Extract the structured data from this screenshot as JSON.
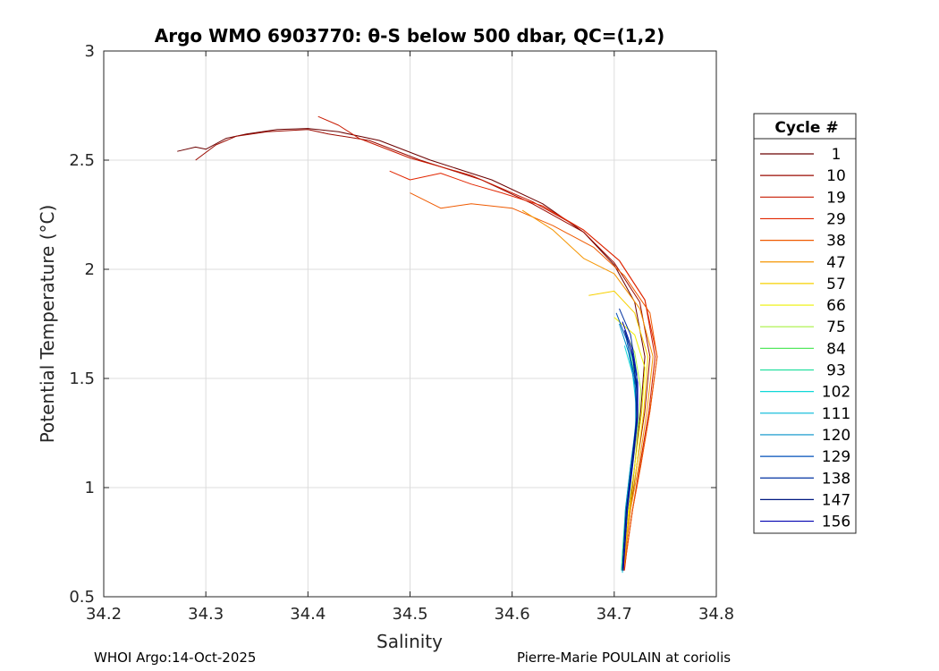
{
  "chart_data": {
    "type": "line",
    "title": "Argo WMO 6903770: θ-S below 500 dbar,  QC=(1,2)",
    "xlabel": "Salinity",
    "ylabel": "Potential Temperature (°C)",
    "xlim": [
      34.2,
      34.8
    ],
    "ylim": [
      0.5,
      3
    ],
    "xticks": [
      "34.2",
      "34.3",
      "34.4",
      "34.5",
      "34.6",
      "34.7",
      "34.8"
    ],
    "yticks": [
      "0.5",
      "1",
      "1.5",
      "2",
      "2.5",
      "3"
    ],
    "grid": true,
    "legend": {
      "title": "Cycle #",
      "placement": "right-outside",
      "entries": [
        {
          "label": "1",
          "color": "#6b0000"
        },
        {
          "label": "10",
          "color": "#9a0a00"
        },
        {
          "label": "19",
          "color": "#c81a00"
        },
        {
          "label": "29",
          "color": "#e22600"
        },
        {
          "label": "38",
          "color": "#ef5a00"
        },
        {
          "label": "47",
          "color": "#f59500"
        },
        {
          "label": "57",
          "color": "#f7d100"
        },
        {
          "label": "66",
          "color": "#eef000"
        },
        {
          "label": "75",
          "color": "#a8f040"
        },
        {
          "label": "84",
          "color": "#55e860"
        },
        {
          "label": "93",
          "color": "#25e0a0"
        },
        {
          "label": "102",
          "color": "#10d8d8"
        },
        {
          "label": "111",
          "color": "#00b8d8"
        },
        {
          "label": "120",
          "color": "#0090c8"
        },
        {
          "label": "129",
          "color": "#0050b8"
        },
        {
          "label": "138",
          "color": "#0030a0"
        },
        {
          "label": "147",
          "color": "#001880"
        },
        {
          "label": "156",
          "color": "#0000b0"
        }
      ]
    },
    "series": [
      {
        "name": "1",
        "color": "#6b0000",
        "points": [
          [
            34.272,
            2.54
          ],
          [
            34.29,
            2.56
          ],
          [
            34.3,
            2.55
          ],
          [
            34.32,
            2.6
          ],
          [
            34.34,
            2.62
          ],
          [
            34.37,
            2.64
          ],
          [
            34.4,
            2.645
          ],
          [
            34.43,
            2.63
          ],
          [
            34.47,
            2.59
          ],
          [
            34.52,
            2.5
          ],
          [
            34.58,
            2.41
          ],
          [
            34.63,
            2.3
          ],
          [
            34.67,
            2.17
          ],
          [
            34.7,
            2.02
          ],
          [
            34.72,
            1.85
          ],
          [
            34.73,
            1.6
          ],
          [
            34.726,
            1.35
          ],
          [
            34.72,
            1.1
          ],
          [
            34.715,
            0.9
          ],
          [
            34.71,
            0.7
          ],
          [
            34.708,
            0.63
          ]
        ]
      },
      {
        "name": "10",
        "color": "#9a0a00",
        "points": [
          [
            34.29,
            2.5
          ],
          [
            34.31,
            2.57
          ],
          [
            34.33,
            2.61
          ],
          [
            34.36,
            2.63
          ],
          [
            34.4,
            2.64
          ],
          [
            34.42,
            2.62
          ],
          [
            34.46,
            2.59
          ],
          [
            34.51,
            2.5
          ],
          [
            34.57,
            2.41
          ],
          [
            34.62,
            2.3
          ],
          [
            34.67,
            2.17
          ],
          [
            34.7,
            2.03
          ],
          [
            34.725,
            1.85
          ],
          [
            34.735,
            1.6
          ],
          [
            34.73,
            1.35
          ],
          [
            34.722,
            1.1
          ],
          [
            34.716,
            0.9
          ],
          [
            34.711,
            0.7
          ],
          [
            34.709,
            0.62
          ]
        ]
      },
      {
        "name": "19",
        "color": "#c81a00",
        "points": [
          [
            34.41,
            2.7
          ],
          [
            34.43,
            2.66
          ],
          [
            34.45,
            2.6
          ],
          [
            34.5,
            2.51
          ],
          [
            34.56,
            2.43
          ],
          [
            34.62,
            2.31
          ],
          [
            34.67,
            2.18
          ],
          [
            34.705,
            2.04
          ],
          [
            34.73,
            1.86
          ],
          [
            34.74,
            1.6
          ],
          [
            34.734,
            1.35
          ],
          [
            34.725,
            1.1
          ],
          [
            34.718,
            0.9
          ],
          [
            34.712,
            0.7
          ],
          [
            34.71,
            0.63
          ]
        ]
      },
      {
        "name": "29",
        "color": "#e22600",
        "points": [
          [
            34.48,
            2.45
          ],
          [
            34.5,
            2.41
          ],
          [
            34.53,
            2.44
          ],
          [
            34.56,
            2.39
          ],
          [
            34.59,
            2.35
          ],
          [
            34.63,
            2.29
          ],
          [
            34.67,
            2.18
          ],
          [
            34.705,
            2.04
          ],
          [
            34.73,
            1.86
          ],
          [
            34.742,
            1.6
          ],
          [
            34.735,
            1.35
          ],
          [
            34.726,
            1.1
          ],
          [
            34.718,
            0.9
          ],
          [
            34.712,
            0.7
          ],
          [
            34.71,
            0.62
          ]
        ]
      },
      {
        "name": "38",
        "color": "#ef5a00",
        "points": [
          [
            34.5,
            2.35
          ],
          [
            34.53,
            2.28
          ],
          [
            34.56,
            2.3
          ],
          [
            34.6,
            2.28
          ],
          [
            34.64,
            2.2
          ],
          [
            34.68,
            2.1
          ],
          [
            34.71,
            1.97
          ],
          [
            34.735,
            1.8
          ],
          [
            34.742,
            1.6
          ],
          [
            34.735,
            1.35
          ],
          [
            34.726,
            1.1
          ],
          [
            34.718,
            0.9
          ],
          [
            34.712,
            0.7
          ],
          [
            34.709,
            0.62
          ]
        ]
      },
      {
        "name": "47",
        "color": "#f59500",
        "points": [
          [
            34.61,
            2.27
          ],
          [
            34.64,
            2.18
          ],
          [
            34.67,
            2.05
          ],
          [
            34.7,
            1.98
          ],
          [
            34.725,
            1.82
          ],
          [
            34.738,
            1.6
          ],
          [
            34.732,
            1.35
          ],
          [
            34.724,
            1.1
          ],
          [
            34.716,
            0.9
          ],
          [
            34.711,
            0.7
          ],
          [
            34.709,
            0.62
          ]
        ]
      },
      {
        "name": "57",
        "color": "#f7d100",
        "points": [
          [
            34.675,
            1.88
          ],
          [
            34.7,
            1.9
          ],
          [
            34.72,
            1.8
          ],
          [
            34.733,
            1.6
          ],
          [
            34.729,
            1.35
          ],
          [
            34.722,
            1.1
          ],
          [
            34.715,
            0.9
          ],
          [
            34.71,
            0.7
          ],
          [
            34.708,
            0.62
          ]
        ]
      },
      {
        "name": "66",
        "color": "#eef000",
        "points": [
          [
            34.7,
            1.78
          ],
          [
            34.72,
            1.7
          ],
          [
            34.73,
            1.55
          ],
          [
            34.727,
            1.35
          ],
          [
            34.72,
            1.1
          ],
          [
            34.714,
            0.9
          ],
          [
            34.709,
            0.7
          ],
          [
            34.708,
            0.63
          ]
        ]
      },
      {
        "name": "75",
        "color": "#a8f040",
        "points": [
          [
            34.71,
            1.72
          ],
          [
            34.72,
            1.62
          ],
          [
            34.726,
            1.45
          ],
          [
            34.724,
            1.3
          ],
          [
            34.718,
            1.1
          ],
          [
            34.713,
            0.9
          ],
          [
            34.709,
            0.7
          ],
          [
            34.708,
            0.63
          ]
        ]
      },
      {
        "name": "84",
        "color": "#55e860",
        "points": [
          [
            34.715,
            1.62
          ],
          [
            34.722,
            1.48
          ],
          [
            34.723,
            1.3
          ],
          [
            34.717,
            1.1
          ],
          [
            34.712,
            0.9
          ],
          [
            34.709,
            0.7
          ],
          [
            34.708,
            0.62
          ]
        ]
      },
      {
        "name": "93",
        "color": "#25e0a0",
        "points": [
          [
            34.717,
            1.58
          ],
          [
            34.722,
            1.45
          ],
          [
            34.722,
            1.3
          ],
          [
            34.716,
            1.1
          ],
          [
            34.711,
            0.9
          ],
          [
            34.708,
            0.7
          ],
          [
            34.707,
            0.62
          ]
        ]
      },
      {
        "name": "102",
        "color": "#10d8d8",
        "points": [
          [
            34.71,
            1.65
          ],
          [
            34.718,
            1.52
          ],
          [
            34.722,
            1.35
          ],
          [
            34.718,
            1.15
          ],
          [
            34.712,
            0.9
          ],
          [
            34.709,
            0.7
          ],
          [
            34.708,
            0.62
          ]
        ]
      },
      {
        "name": "111",
        "color": "#00b8d8",
        "points": [
          [
            34.712,
            1.7
          ],
          [
            34.72,
            1.55
          ],
          [
            34.723,
            1.38
          ],
          [
            34.719,
            1.15
          ],
          [
            34.713,
            0.9
          ],
          [
            34.709,
            0.7
          ],
          [
            34.708,
            0.61
          ]
        ]
      },
      {
        "name": "120",
        "color": "#0090c8",
        "points": [
          [
            34.705,
            1.75
          ],
          [
            34.714,
            1.62
          ],
          [
            34.721,
            1.45
          ],
          [
            34.721,
            1.28
          ],
          [
            34.716,
            1.1
          ],
          [
            34.711,
            0.9
          ],
          [
            34.709,
            0.7
          ],
          [
            34.708,
            0.62
          ]
        ]
      },
      {
        "name": "129",
        "color": "#0050b8",
        "points": [
          [
            34.702,
            1.8
          ],
          [
            34.712,
            1.68
          ],
          [
            34.72,
            1.5
          ],
          [
            34.722,
            1.32
          ],
          [
            34.717,
            1.1
          ],
          [
            34.712,
            0.9
          ],
          [
            34.709,
            0.7
          ],
          [
            34.708,
            0.62
          ]
        ]
      },
      {
        "name": "138",
        "color": "#0030a0",
        "points": [
          [
            34.705,
            1.82
          ],
          [
            34.716,
            1.7
          ],
          [
            34.722,
            1.52
          ],
          [
            34.722,
            1.33
          ],
          [
            34.717,
            1.1
          ],
          [
            34.712,
            0.9
          ],
          [
            34.709,
            0.7
          ],
          [
            34.709,
            0.62
          ]
        ]
      },
      {
        "name": "147",
        "color": "#001880",
        "points": [
          [
            34.71,
            1.72
          ],
          [
            34.718,
            1.6
          ],
          [
            34.722,
            1.45
          ],
          [
            34.722,
            1.3
          ],
          [
            34.717,
            1.1
          ],
          [
            34.712,
            0.9
          ],
          [
            34.709,
            0.7
          ],
          [
            34.708,
            0.62
          ]
        ]
      },
      {
        "name": "156",
        "color": "#0000b0",
        "points": [
          [
            34.708,
            1.76
          ],
          [
            34.717,
            1.64
          ],
          [
            34.723,
            1.48
          ],
          [
            34.723,
            1.32
          ],
          [
            34.718,
            1.1
          ],
          [
            34.713,
            0.9
          ],
          [
            34.71,
            0.7
          ],
          [
            34.709,
            0.63
          ]
        ]
      }
    ]
  },
  "footer": {
    "left": "WHOI Argo:14-Oct-2025",
    "right": "Pierre-Marie POULAIN at coriolis"
  }
}
